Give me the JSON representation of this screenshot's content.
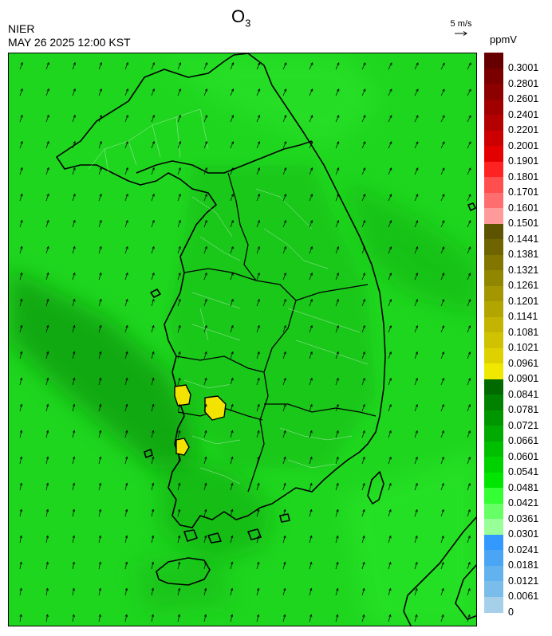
{
  "header": {
    "agency": "NIER",
    "datetime": "MAY 26 2025 12:00 KST",
    "title_main": "O",
    "title_sub": "3",
    "wind_reference": "5 m/s",
    "unit": "ppmV"
  },
  "colorbar": {
    "labels": [
      "0.3001",
      "0.2801",
      "0.2601",
      "0.2401",
      "0.2201",
      "0.2001",
      "0.1901",
      "0.1801",
      "0.1701",
      "0.1601",
      "0.1501",
      "0.1441",
      "0.1381",
      "0.1321",
      "0.1261",
      "0.1201",
      "0.1141",
      "0.1081",
      "0.1021",
      "0.0961",
      "0.0901",
      "0.0841",
      "0.0781",
      "0.0721",
      "0.0661",
      "0.0601",
      "0.0541",
      "0.0481",
      "0.0421",
      "0.0361",
      "0.0301",
      "0.0241",
      "0.0181",
      "0.0121",
      "0.0061",
      "0"
    ],
    "colors": [
      "#660000",
      "#7a0000",
      "#8c0000",
      "#a00000",
      "#b40000",
      "#cc0000",
      "#e30000",
      "#ff2222",
      "#ff4e4e",
      "#ff6e6e",
      "#ff9a9a",
      "#5c5400",
      "#6e6500",
      "#807600",
      "#918600",
      "#a39600",
      "#b3a500",
      "#c2b400",
      "#d0c200",
      "#dfd100",
      "#f0e800",
      "#006a00",
      "#008200",
      "#009600",
      "#00aa00",
      "#00be00",
      "#00d200",
      "#00e600",
      "#33ff33",
      "#66ff66",
      "#99ff99",
      "#3399ff",
      "#4aa6f5",
      "#62b2f0",
      "#7bbdea",
      "#a6d0ea"
    ]
  },
  "map": {
    "background_color": "#1fd61f",
    "hotspot_color": "#f2e400",
    "coast_color": "#000000",
    "boundary_color": "#bfe7bf"
  }
}
